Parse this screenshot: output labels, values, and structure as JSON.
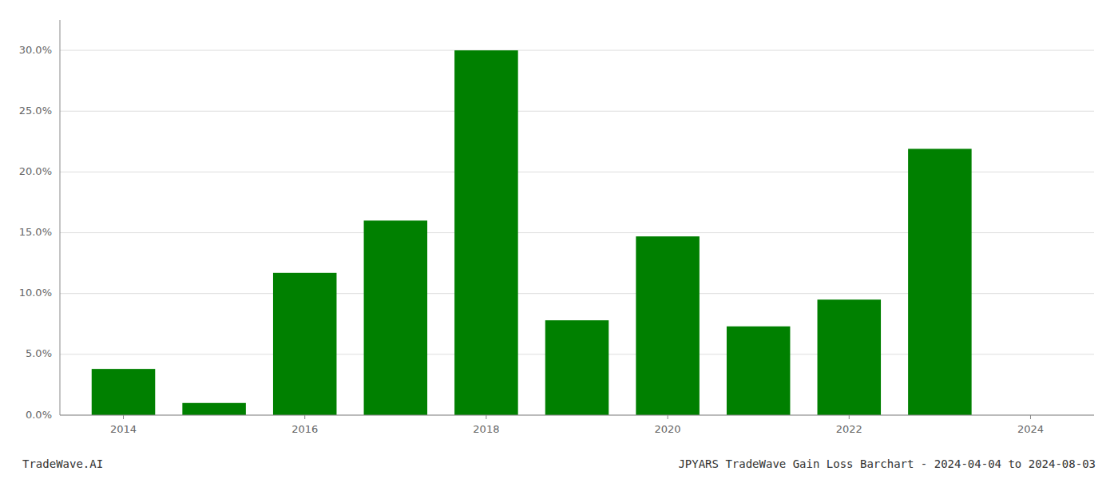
{
  "chart_data": {
    "type": "bar",
    "x": [
      2014,
      2015,
      2016,
      2017,
      2018,
      2019,
      2020,
      2021,
      2022,
      2023
    ],
    "values": [
      0.038,
      0.01,
      0.117,
      0.16,
      0.3,
      0.078,
      0.147,
      0.073,
      0.095,
      0.219
    ],
    "color": "#008000",
    "xlim": [
      2013.3,
      2024.7
    ],
    "xticks": [
      2014,
      2016,
      2018,
      2020,
      2022,
      2024
    ],
    "ylim": [
      0,
      0.325
    ],
    "yticks": [
      {
        "value": 0.0,
        "label": "0.0%"
      },
      {
        "value": 0.05,
        "label": "5.0%"
      },
      {
        "value": 0.1,
        "label": "10.0%"
      },
      {
        "value": 0.15,
        "label": "15.0%"
      },
      {
        "value": 0.2,
        "label": "20.0%"
      },
      {
        "value": 0.25,
        "label": "25.0%"
      },
      {
        "value": 0.3,
        "label": "30.0%"
      }
    ],
    "grid": true,
    "annotations": [
      "TradeWave.AI",
      "JPYARS TradeWave Gain Loss Barchart - 2024-04-04 to 2024-08-03"
    ]
  }
}
